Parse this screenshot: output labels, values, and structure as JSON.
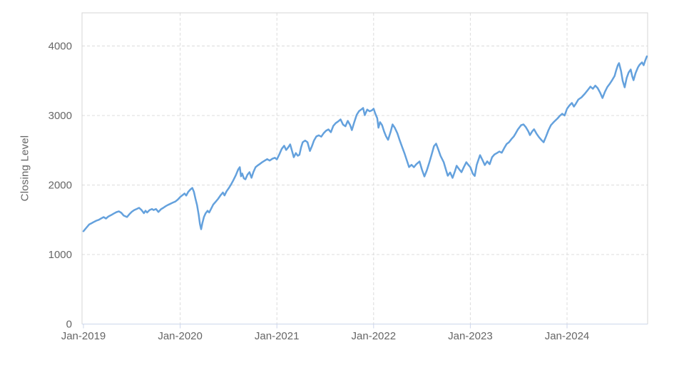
{
  "chart_data": {
    "type": "line",
    "title": "",
    "xlabel": "",
    "ylabel": "Closing Level",
    "legend": "none",
    "grid": "dashed",
    "colors": {
      "line": "#64a1dd",
      "grid": "#dcdcdc",
      "border": "#d4d4d4",
      "axis": "#ccd6eb",
      "tick_label": "#666666"
    },
    "y_axis": {
      "ticks": [
        0,
        1000,
        2000,
        3000,
        4000
      ],
      "range": [
        0,
        4477
      ]
    },
    "x_axis": {
      "tick_labels": [
        "Jan-2019",
        "Jan-2020",
        "Jan-2021",
        "Jan-2022",
        "Jan-2023",
        "Jan-2024"
      ],
      "tick_months": [
        0,
        12,
        24,
        36,
        48,
        60
      ],
      "range_months": [
        0,
        69.9
      ]
    },
    "series": [
      {
        "name": "Closing Level",
        "points": [
          [
            0,
            1335
          ],
          [
            0.35,
            1385
          ],
          [
            0.7,
            1432
          ],
          [
            1,
            1450
          ],
          [
            1.3,
            1470
          ],
          [
            1.6,
            1487
          ],
          [
            1.9,
            1500
          ],
          [
            2.2,
            1520
          ],
          [
            2.5,
            1538
          ],
          [
            2.8,
            1518
          ],
          [
            3.1,
            1548
          ],
          [
            3.4,
            1565
          ],
          [
            3.8,
            1592
          ],
          [
            4.1,
            1610
          ],
          [
            4.4,
            1622
          ],
          [
            4.7,
            1600
          ],
          [
            5,
            1560
          ],
          [
            5.4,
            1540
          ],
          [
            5.7,
            1580
          ],
          [
            6,
            1615
          ],
          [
            6.3,
            1640
          ],
          [
            6.6,
            1655
          ],
          [
            6.9,
            1672
          ],
          [
            7.2,
            1640
          ],
          [
            7.5,
            1595
          ],
          [
            7.7,
            1630
          ],
          [
            7.9,
            1605
          ],
          [
            8.2,
            1640
          ],
          [
            8.5,
            1655
          ],
          [
            8.7,
            1640
          ],
          [
            9,
            1655
          ],
          [
            9.3,
            1612
          ],
          [
            9.6,
            1650
          ],
          [
            9.9,
            1672
          ],
          [
            10.2,
            1695
          ],
          [
            10.5,
            1715
          ],
          [
            10.8,
            1730
          ],
          [
            11.1,
            1748
          ],
          [
            11.4,
            1762
          ],
          [
            11.7,
            1790
          ],
          [
            12,
            1828
          ],
          [
            12.3,
            1855
          ],
          [
            12.55,
            1878
          ],
          [
            12.75,
            1848
          ],
          [
            13,
            1902
          ],
          [
            13.3,
            1940
          ],
          [
            13.5,
            1958
          ],
          [
            13.7,
            1905
          ],
          [
            13.9,
            1800
          ],
          [
            14.1,
            1710
          ],
          [
            14.3,
            1570
          ],
          [
            14.45,
            1440
          ],
          [
            14.6,
            1364
          ],
          [
            14.75,
            1450
          ],
          [
            14.95,
            1540
          ],
          [
            15.15,
            1592
          ],
          [
            15.4,
            1630
          ],
          [
            15.6,
            1605
          ],
          [
            15.85,
            1660
          ],
          [
            16.1,
            1718
          ],
          [
            16.4,
            1758
          ],
          [
            16.7,
            1800
          ],
          [
            17,
            1850
          ],
          [
            17.3,
            1892
          ],
          [
            17.5,
            1850
          ],
          [
            17.75,
            1910
          ],
          [
            18,
            1950
          ],
          [
            18.3,
            2005
          ],
          [
            18.6,
            2070
          ],
          [
            18.9,
            2140
          ],
          [
            19.2,
            2225
          ],
          [
            19.4,
            2256
          ],
          [
            19.55,
            2125
          ],
          [
            19.7,
            2165
          ],
          [
            19.9,
            2095
          ],
          [
            20.1,
            2082
          ],
          [
            20.35,
            2150
          ],
          [
            20.6,
            2185
          ],
          [
            20.85,
            2105
          ],
          [
            21.1,
            2190
          ],
          [
            21.35,
            2256
          ],
          [
            21.6,
            2280
          ],
          [
            21.9,
            2305
          ],
          [
            22.2,
            2330
          ],
          [
            22.5,
            2352
          ],
          [
            22.8,
            2372
          ],
          [
            23.1,
            2352
          ],
          [
            23.45,
            2378
          ],
          [
            23.75,
            2392
          ],
          [
            24,
            2368
          ],
          [
            24.3,
            2440
          ],
          [
            24.6,
            2520
          ],
          [
            24.9,
            2565
          ],
          [
            25.15,
            2505
          ],
          [
            25.4,
            2540
          ],
          [
            25.65,
            2585
          ],
          [
            25.9,
            2480
          ],
          [
            26.1,
            2400
          ],
          [
            26.35,
            2460
          ],
          [
            26.6,
            2420
          ],
          [
            26.8,
            2435
          ],
          [
            27,
            2540
          ],
          [
            27.2,
            2615
          ],
          [
            27.5,
            2640
          ],
          [
            27.8,
            2615
          ],
          [
            28.1,
            2490
          ],
          [
            28.35,
            2560
          ],
          [
            28.6,
            2640
          ],
          [
            28.9,
            2700
          ],
          [
            29.2,
            2715
          ],
          [
            29.5,
            2695
          ],
          [
            29.8,
            2745
          ],
          [
            30.1,
            2780
          ],
          [
            30.4,
            2800
          ],
          [
            30.7,
            2760
          ],
          [
            31,
            2850
          ],
          [
            31.3,
            2890
          ],
          [
            31.6,
            2915
          ],
          [
            31.9,
            2944
          ],
          [
            32.2,
            2870
          ],
          [
            32.5,
            2845
          ],
          [
            32.8,
            2923
          ],
          [
            33.1,
            2860
          ],
          [
            33.3,
            2790
          ],
          [
            33.6,
            2905
          ],
          [
            33.9,
            3010
          ],
          [
            34.2,
            3065
          ],
          [
            34.5,
            3090
          ],
          [
            34.7,
            3108
          ],
          [
            34.9,
            3005
          ],
          [
            35.2,
            3085
          ],
          [
            35.5,
            3060
          ],
          [
            35.8,
            3075
          ],
          [
            36,
            3097
          ],
          [
            36.2,
            3030
          ],
          [
            36.45,
            2960
          ],
          [
            36.6,
            2825
          ],
          [
            36.8,
            2905
          ],
          [
            37.05,
            2860
          ],
          [
            37.3,
            2770
          ],
          [
            37.55,
            2700
          ],
          [
            37.8,
            2650
          ],
          [
            38.1,
            2760
          ],
          [
            38.35,
            2872
          ],
          [
            38.65,
            2820
          ],
          [
            38.95,
            2745
          ],
          [
            39.25,
            2640
          ],
          [
            39.55,
            2545
          ],
          [
            39.85,
            2450
          ],
          [
            40.15,
            2345
          ],
          [
            40.4,
            2258
          ],
          [
            40.7,
            2290
          ],
          [
            41,
            2256
          ],
          [
            41.3,
            2300
          ],
          [
            41.7,
            2338
          ],
          [
            42,
            2220
          ],
          [
            42.3,
            2123
          ],
          [
            42.6,
            2210
          ],
          [
            42.9,
            2320
          ],
          [
            43.2,
            2440
          ],
          [
            43.5,
            2560
          ],
          [
            43.75,
            2595
          ],
          [
            44,
            2520
          ],
          [
            44.3,
            2420
          ],
          [
            44.7,
            2328
          ],
          [
            45,
            2210
          ],
          [
            45.2,
            2133
          ],
          [
            45.5,
            2180
          ],
          [
            45.8,
            2103
          ],
          [
            46.1,
            2200
          ],
          [
            46.3,
            2277
          ],
          [
            46.6,
            2230
          ],
          [
            46.9,
            2185
          ],
          [
            47.2,
            2260
          ],
          [
            47.5,
            2328
          ],
          [
            47.75,
            2290
          ],
          [
            48,
            2256
          ],
          [
            48.3,
            2165
          ],
          [
            48.55,
            2130
          ],
          [
            48.8,
            2290
          ],
          [
            49.2,
            2430
          ],
          [
            49.5,
            2360
          ],
          [
            49.8,
            2287
          ],
          [
            50.1,
            2340
          ],
          [
            50.4,
            2300
          ],
          [
            50.7,
            2400
          ],
          [
            51,
            2440
          ],
          [
            51.3,
            2460
          ],
          [
            51.6,
            2482
          ],
          [
            51.9,
            2465
          ],
          [
            52.2,
            2530
          ],
          [
            52.5,
            2590
          ],
          [
            52.8,
            2615
          ],
          [
            53.1,
            2660
          ],
          [
            53.4,
            2700
          ],
          [
            53.6,
            2738
          ],
          [
            53.9,
            2800
          ],
          [
            54.3,
            2860
          ],
          [
            54.6,
            2872
          ],
          [
            54.9,
            2830
          ],
          [
            55.2,
            2770
          ],
          [
            55.4,
            2718
          ],
          [
            55.7,
            2775
          ],
          [
            55.9,
            2802
          ],
          [
            56.2,
            2740
          ],
          [
            56.5,
            2690
          ],
          [
            56.8,
            2650
          ],
          [
            57.1,
            2615
          ],
          [
            57.4,
            2700
          ],
          [
            57.7,
            2790
          ],
          [
            58,
            2860
          ],
          [
            58.3,
            2900
          ],
          [
            58.5,
            2923
          ],
          [
            58.8,
            2955
          ],
          [
            59.1,
            2995
          ],
          [
            59.4,
            3026
          ],
          [
            59.7,
            3000
          ],
          [
            60,
            3097
          ],
          [
            60.3,
            3145
          ],
          [
            60.6,
            3180
          ],
          [
            60.85,
            3128
          ],
          [
            61.1,
            3170
          ],
          [
            61.4,
            3230
          ],
          [
            61.8,
            3262
          ],
          [
            62.2,
            3313
          ],
          [
            62.6,
            3370
          ],
          [
            62.9,
            3415
          ],
          [
            63.2,
            3385
          ],
          [
            63.5,
            3430
          ],
          [
            63.8,
            3395
          ],
          [
            64.1,
            3330
          ],
          [
            64.4,
            3251
          ],
          [
            64.7,
            3340
          ],
          [
            65,
            3410
          ],
          [
            65.3,
            3456
          ],
          [
            65.6,
            3510
          ],
          [
            65.9,
            3569
          ],
          [
            66.1,
            3650
          ],
          [
            66.3,
            3723
          ],
          [
            66.45,
            3754
          ],
          [
            66.7,
            3640
          ],
          [
            66.9,
            3500
          ],
          [
            67.15,
            3405
          ],
          [
            67.4,
            3540
          ],
          [
            67.65,
            3620
          ],
          [
            67.9,
            3662
          ],
          [
            68.1,
            3560
          ],
          [
            68.25,
            3508
          ],
          [
            68.5,
            3610
          ],
          [
            68.8,
            3692
          ],
          [
            69,
            3730
          ],
          [
            69.3,
            3764
          ],
          [
            69.5,
            3723
          ],
          [
            69.7,
            3790
          ],
          [
            69.9,
            3850
          ]
        ]
      }
    ]
  }
}
